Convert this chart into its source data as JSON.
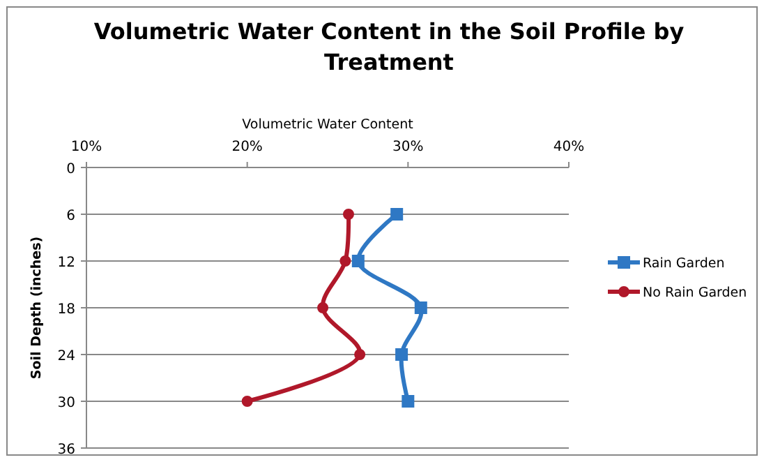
{
  "chart_data": {
    "type": "line",
    "orientation": "horizontal",
    "title": "Volumetric  Water Content in the Soil Profile by Treatment",
    "xlabel": "Volumetric Water Content",
    "ylabel": "Soil Depth (inches)",
    "xlim": [
      10,
      40
    ],
    "xticks": [
      {
        "value": 10,
        "label": "10%"
      },
      {
        "value": 20,
        "label": "20%"
      },
      {
        "value": 30,
        "label": "30%"
      },
      {
        "value": 40,
        "label": "40%"
      }
    ],
    "ylim": [
      36,
      0
    ],
    "yticks": [
      0,
      6,
      12,
      18,
      24,
      30,
      36
    ],
    "grid": "y",
    "legend": "right",
    "series": [
      {
        "name": "Rain Garden",
        "color": "#2f78c4",
        "marker": "square",
        "x": [
          6,
          12,
          18,
          24,
          30
        ],
        "values": [
          29.3,
          26.9,
          30.8,
          29.6,
          30.0
        ]
      },
      {
        "name": "No Rain Garden",
        "color": "#b0182a",
        "marker": "circle",
        "x": [
          6,
          12,
          18,
          24,
          30
        ],
        "values": [
          26.3,
          26.1,
          24.7,
          27.0,
          20.0
        ]
      }
    ]
  }
}
